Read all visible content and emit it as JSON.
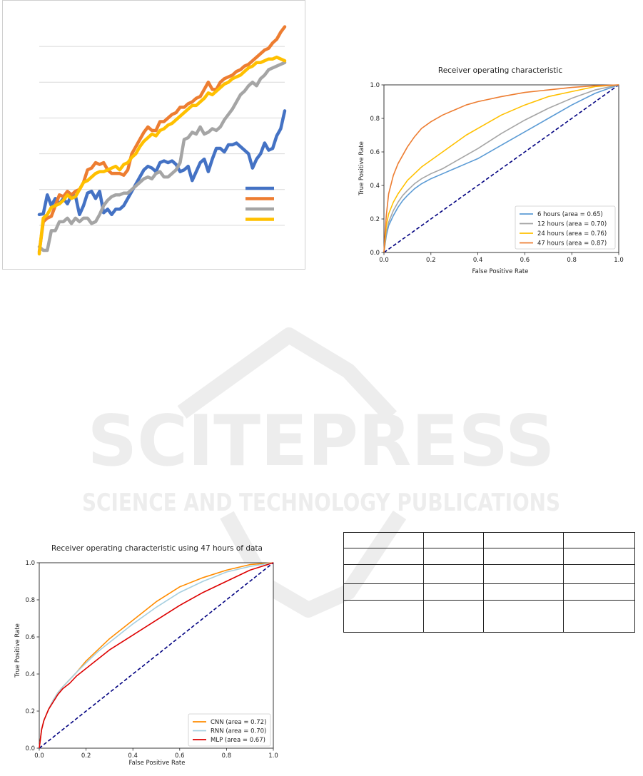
{
  "watermark": {
    "main": "SCITEPRESS",
    "sub": "SCIENCE AND TECHNOLOGY PUBLICATIONS"
  },
  "chart_data": [
    {
      "type": "line",
      "x": [
        0,
        1,
        2,
        3,
        4,
        5,
        6,
        7,
        8,
        9,
        10,
        11,
        12,
        13,
        14,
        15,
        16,
        17,
        18,
        19,
        20,
        21,
        22,
        23,
        24,
        25,
        26,
        27,
        28,
        29,
        30,
        31,
        32,
        33,
        34,
        35,
        36,
        37,
        38,
        39,
        40,
        41,
        42,
        43,
        44,
        45,
        46,
        47,
        48,
        49,
        50,
        51,
        52,
        53,
        54,
        55,
        56,
        57,
        58,
        59,
        60,
        61
      ],
      "ylim": [
        0,
        7
      ],
      "series": [
        {
          "color": "#4472c4",
          "values": [
            1.3,
            1.32,
            1.85,
            1.55,
            1.75,
            1.6,
            1.75,
            1.6,
            1.85,
            1.82,
            1.3,
            1.55,
            1.9,
            1.95,
            1.75,
            1.95,
            1.35,
            1.45,
            1.3,
            1.45,
            1.45,
            1.55,
            1.75,
            1.95,
            2.15,
            2.35,
            2.55,
            2.65,
            2.6,
            2.5,
            2.75,
            2.8,
            2.75,
            2.8,
            2.7,
            2.5,
            2.55,
            2.65,
            2.25,
            2.5,
            2.75,
            2.85,
            2.5,
            2.85,
            3.15,
            3.15,
            3.05,
            3.25,
            3.25,
            3.3,
            3.2,
            3.1,
            3.0,
            2.6,
            2.85,
            3.0,
            3.3,
            3.1,
            3.15,
            3.5,
            3.7,
            4.2
          ]
        },
        {
          "color": "#ed7d31",
          "values": [
            0.25,
            1.1,
            1.2,
            1.25,
            1.55,
            1.85,
            1.8,
            1.95,
            1.85,
            1.95,
            2.0,
            2.2,
            2.55,
            2.6,
            2.75,
            2.7,
            2.75,
            2.55,
            2.45,
            2.45,
            2.45,
            2.4,
            2.55,
            3.0,
            3.2,
            3.4,
            3.6,
            3.75,
            3.65,
            3.65,
            3.9,
            3.9,
            4.0,
            4.1,
            4.15,
            4.3,
            4.3,
            4.4,
            4.45,
            4.55,
            4.6,
            4.8,
            5.0,
            4.8,
            4.8,
            5.0,
            5.1,
            5.15,
            5.2,
            5.3,
            5.35,
            5.45,
            5.5,
            5.6,
            5.7,
            5.8,
            5.9,
            5.95,
            6.1,
            6.2,
            6.4,
            6.55
          ]
        },
        {
          "color": "#a5a5a5",
          "values": [
            0.4,
            0.3,
            0.3,
            0.85,
            0.85,
            1.1,
            1.1,
            1.2,
            1.05,
            1.2,
            1.1,
            1.2,
            1.2,
            1.05,
            1.1,
            1.3,
            1.55,
            1.7,
            1.8,
            1.85,
            1.85,
            1.9,
            1.9,
            2.0,
            2.1,
            2.2,
            2.3,
            2.35,
            2.3,
            2.45,
            2.5,
            2.35,
            2.35,
            2.45,
            2.55,
            2.75,
            3.4,
            3.45,
            3.6,
            3.55,
            3.75,
            3.55,
            3.6,
            3.7,
            3.65,
            3.75,
            3.95,
            4.1,
            4.25,
            4.45,
            4.65,
            4.75,
            4.9,
            5.0,
            4.9,
            5.1,
            5.2,
            5.35,
            5.4,
            5.45,
            5.5,
            5.55
          ]
        },
        {
          "color": "#ffc000",
          "values": [
            0.2,
            1.2,
            1.3,
            1.5,
            1.55,
            1.6,
            1.7,
            1.85,
            1.75,
            1.8,
            2.0,
            2.2,
            2.25,
            2.35,
            2.45,
            2.5,
            2.5,
            2.55,
            2.6,
            2.65,
            2.55,
            2.7,
            2.75,
            2.9,
            3.0,
            3.2,
            3.35,
            3.45,
            3.55,
            3.5,
            3.65,
            3.7,
            3.8,
            3.85,
            3.95,
            4.05,
            4.15,
            4.25,
            4.35,
            4.35,
            4.45,
            4.55,
            4.7,
            4.65,
            4.75,
            4.85,
            4.95,
            5.0,
            5.1,
            5.15,
            5.2,
            5.3,
            5.4,
            5.45,
            5.55,
            5.55,
            5.6,
            5.65,
            5.65,
            5.7,
            5.65,
            5.6
          ]
        }
      ]
    },
    {
      "type": "line",
      "title": "Receiver operating characteristic",
      "xlabel": "False Positive Rate",
      "ylabel": "True Positive Rate",
      "xlim": [
        0,
        1.0
      ],
      "ylim": [
        0,
        1.0
      ],
      "ticks": [
        "0.0",
        "0.2",
        "0.4",
        "0.6",
        "0.8",
        "1.0"
      ],
      "legend_position": "lower-right",
      "diagonal_color": "#000080",
      "series": [
        {
          "name": "6 hours (area = 0.65)",
          "color": "#5b9bd5",
          "x": [
            0,
            0.01,
            0.02,
            0.04,
            0.06,
            0.08,
            0.1,
            0.13,
            0.16,
            0.2,
            0.25,
            0.3,
            0.35,
            0.4,
            0.5,
            0.6,
            0.7,
            0.8,
            0.9,
            1.0
          ],
          "y": [
            0,
            0.1,
            0.16,
            0.22,
            0.27,
            0.31,
            0.34,
            0.38,
            0.41,
            0.44,
            0.47,
            0.5,
            0.53,
            0.56,
            0.64,
            0.72,
            0.8,
            0.88,
            0.95,
            1.0
          ]
        },
        {
          "name": "12 hours (area = 0.70)",
          "color": "#a5a5a5",
          "x": [
            0,
            0.01,
            0.02,
            0.04,
            0.06,
            0.08,
            0.1,
            0.13,
            0.16,
            0.2,
            0.25,
            0.3,
            0.35,
            0.4,
            0.5,
            0.6,
            0.7,
            0.8,
            0.9,
            1.0
          ],
          "y": [
            0,
            0.12,
            0.18,
            0.25,
            0.3,
            0.34,
            0.37,
            0.41,
            0.44,
            0.47,
            0.5,
            0.54,
            0.58,
            0.62,
            0.71,
            0.79,
            0.86,
            0.92,
            0.97,
            1.0
          ]
        },
        {
          "name": "24 hours (area = 0.76)",
          "color": "#ffc000",
          "x": [
            0,
            0.01,
            0.02,
            0.04,
            0.06,
            0.08,
            0.1,
            0.13,
            0.16,
            0.2,
            0.25,
            0.3,
            0.35,
            0.4,
            0.5,
            0.6,
            0.7,
            0.8,
            0.9,
            1.0
          ],
          "y": [
            0,
            0.16,
            0.23,
            0.3,
            0.35,
            0.39,
            0.43,
            0.47,
            0.51,
            0.55,
            0.6,
            0.65,
            0.7,
            0.74,
            0.82,
            0.88,
            0.93,
            0.96,
            0.99,
            1.0
          ]
        },
        {
          "name": "47 hours (area = 0.87)",
          "color": "#ed7d31",
          "x": [
            0,
            0.005,
            0.01,
            0.02,
            0.04,
            0.06,
            0.08,
            0.1,
            0.13,
            0.16,
            0.2,
            0.25,
            0.3,
            0.35,
            0.4,
            0.5,
            0.6,
            0.7,
            0.8,
            0.9,
            1.0
          ],
          "y": [
            0,
            0.12,
            0.22,
            0.35,
            0.46,
            0.53,
            0.58,
            0.63,
            0.69,
            0.74,
            0.78,
            0.82,
            0.85,
            0.88,
            0.9,
            0.93,
            0.955,
            0.97,
            0.985,
            0.995,
            1.0
          ]
        }
      ]
    },
    {
      "type": "line",
      "title": "Receiver operating characteristic using 47 hours of data",
      "xlabel": "False Positive Rate",
      "ylabel": "True Positive Rate",
      "xlim": [
        0,
        1.0
      ],
      "ylim": [
        0,
        1.0
      ],
      "ticks": [
        "0.0",
        "0.2",
        "0.4",
        "0.6",
        "0.8",
        "1.0"
      ],
      "legend_position": "lower-right",
      "diagonal_color": "#000080",
      "series": [
        {
          "name": "CNN (area = 0.72)",
          "color": "#ff8c00",
          "x": [
            0,
            0.01,
            0.02,
            0.04,
            0.06,
            0.08,
            0.1,
            0.13,
            0.16,
            0.2,
            0.25,
            0.3,
            0.35,
            0.4,
            0.5,
            0.6,
            0.7,
            0.8,
            0.9,
            1.0
          ],
          "y": [
            0,
            0.1,
            0.15,
            0.21,
            0.26,
            0.3,
            0.33,
            0.37,
            0.41,
            0.47,
            0.53,
            0.59,
            0.64,
            0.69,
            0.79,
            0.87,
            0.92,
            0.96,
            0.99,
            1.0
          ]
        },
        {
          "name": "RNN (area = 0.70)",
          "color": "#a6cfe0",
          "x": [
            0,
            0.01,
            0.02,
            0.04,
            0.06,
            0.08,
            0.1,
            0.13,
            0.16,
            0.2,
            0.25,
            0.3,
            0.35,
            0.4,
            0.5,
            0.6,
            0.7,
            0.8,
            0.9,
            1.0
          ],
          "y": [
            0,
            0.1,
            0.15,
            0.21,
            0.26,
            0.3,
            0.33,
            0.37,
            0.41,
            0.46,
            0.52,
            0.57,
            0.62,
            0.67,
            0.76,
            0.84,
            0.9,
            0.95,
            0.98,
            1.0
          ]
        },
        {
          "name": "MLP (area = 0.67)",
          "color": "#dd0000",
          "x": [
            0,
            0.01,
            0.02,
            0.04,
            0.06,
            0.08,
            0.1,
            0.13,
            0.16,
            0.2,
            0.25,
            0.3,
            0.35,
            0.4,
            0.5,
            0.6,
            0.7,
            0.8,
            0.9,
            1.0
          ],
          "y": [
            0,
            0.1,
            0.15,
            0.21,
            0.25,
            0.29,
            0.32,
            0.35,
            0.39,
            0.43,
            0.48,
            0.53,
            0.57,
            0.61,
            0.69,
            0.77,
            0.84,
            0.9,
            0.96,
            1.0
          ]
        }
      ]
    }
  ],
  "table": {
    "rows": [
      [
        "",
        "",
        "",
        ""
      ],
      [
        "",
        "",
        "",
        ""
      ],
      [
        "",
        "",
        "",
        ""
      ],
      [
        "",
        "",
        "",
        ""
      ],
      [
        "",
        "",
        "",
        ""
      ]
    ]
  }
}
